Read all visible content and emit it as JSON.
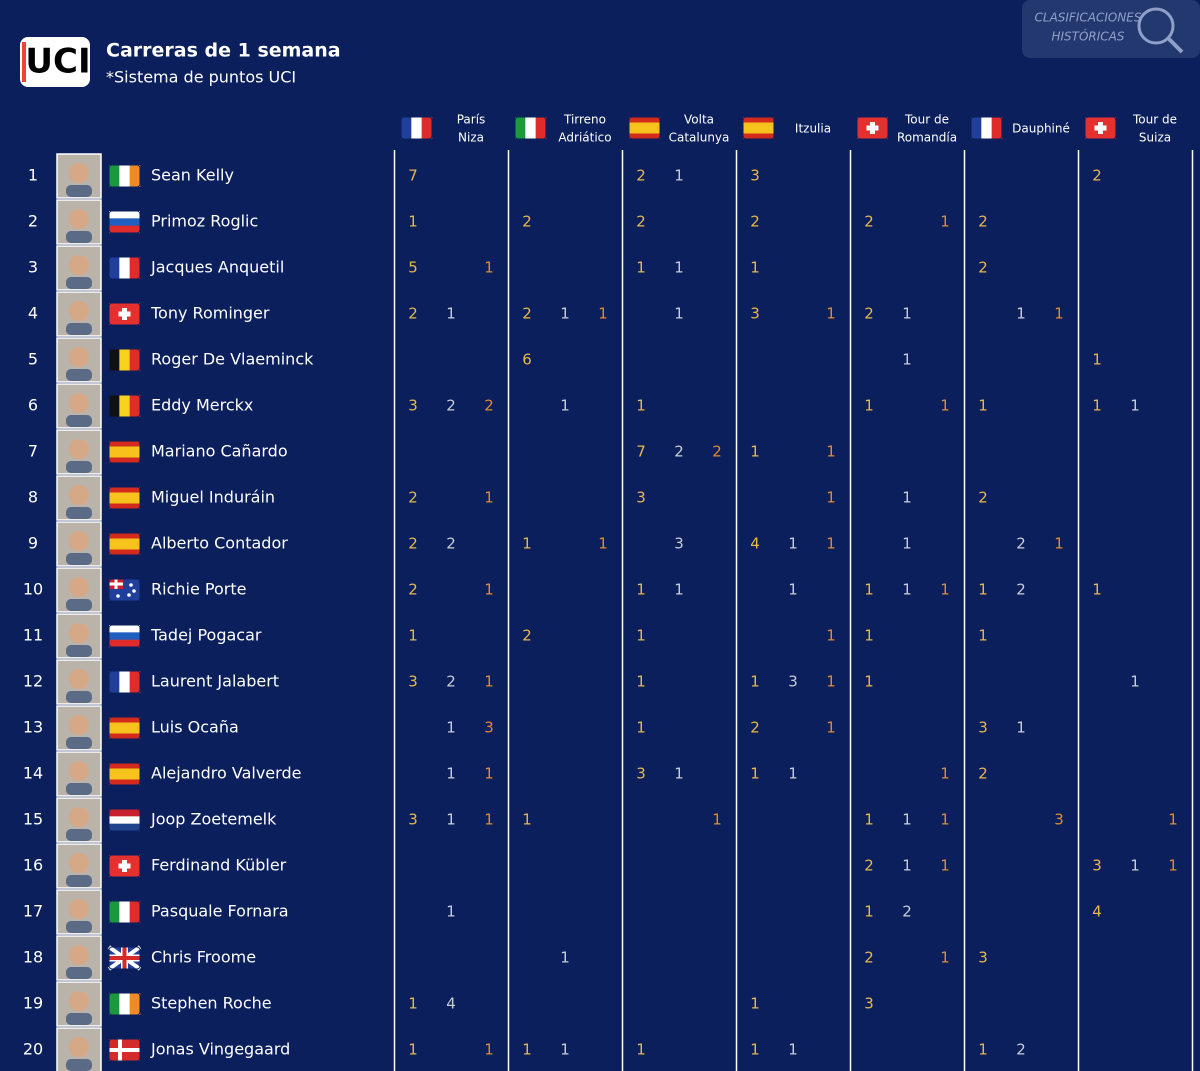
{
  "header": {
    "logo": "UCI",
    "title": "Carreras de 1 semana",
    "subtitle": "*Sistema de puntos UCI",
    "watermark": [
      "CLASIFICACIONES",
      "HISTÓRICAS"
    ]
  },
  "table": {
    "columns": [
      [
        "París",
        "Niza"
      ],
      [
        "Tirreno",
        "Adriático"
      ],
      [
        "Volta",
        "Catalunya"
      ],
      [
        "Itzulia"
      ],
      [
        "Tour de",
        "Romandía"
      ],
      [
        "Dauphiné"
      ],
      [
        "Tour de",
        "Suiza"
      ]
    ],
    "rows": [
      {
        "rank": 1,
        "name": "Sean Kelly",
        "cells": [
          7,
          null,
          null,
          null,
          null,
          null,
          2,
          1,
          null,
          3,
          null,
          null,
          null,
          null,
          null,
          null,
          null,
          null,
          2,
          null,
          null
        ]
      },
      {
        "rank": 2,
        "name": "Primoz Roglic",
        "cells": [
          1,
          null,
          null,
          2,
          null,
          null,
          2,
          null,
          null,
          2,
          null,
          null,
          2,
          null,
          1,
          2,
          null,
          null,
          null,
          null,
          null
        ]
      },
      {
        "rank": 3,
        "name": "Jacques Anquetil",
        "cells": [
          5,
          null,
          1,
          null,
          null,
          null,
          1,
          1,
          null,
          1,
          null,
          null,
          null,
          null,
          null,
          2,
          null,
          null,
          null,
          null,
          null
        ]
      },
      {
        "rank": 4,
        "name": "Tony Rominger",
        "cells": [
          2,
          1,
          null,
          2,
          1,
          1,
          null,
          1,
          null,
          3,
          null,
          1,
          2,
          1,
          null,
          null,
          1,
          1,
          null,
          null,
          null
        ]
      },
      {
        "rank": 5,
        "name": "Roger De Vlaeminck",
        "cells": [
          null,
          null,
          null,
          6,
          null,
          null,
          null,
          null,
          null,
          null,
          null,
          null,
          null,
          1,
          null,
          null,
          null,
          null,
          1,
          null,
          null
        ]
      },
      {
        "rank": 6,
        "name": "Eddy Merckx",
        "cells": [
          3,
          2,
          2,
          null,
          1,
          null,
          1,
          null,
          null,
          null,
          null,
          null,
          1,
          null,
          1,
          1,
          null,
          null,
          1,
          1,
          null
        ]
      },
      {
        "rank": 7,
        "name": "Mariano Cañardo",
        "cells": [
          null,
          null,
          null,
          null,
          null,
          null,
          7,
          2,
          2,
          1,
          null,
          1,
          null,
          null,
          null,
          null,
          null,
          null,
          null,
          null,
          null
        ]
      },
      {
        "rank": 8,
        "name": "Miguel Induráin",
        "cells": [
          2,
          null,
          1,
          null,
          null,
          null,
          3,
          null,
          null,
          null,
          null,
          1,
          null,
          1,
          null,
          2,
          null,
          null,
          null,
          null,
          null
        ]
      },
      {
        "rank": 9,
        "name": "Alberto Contador",
        "cells": [
          2,
          2,
          null,
          1,
          null,
          1,
          null,
          3,
          null,
          4,
          1,
          1,
          null,
          1,
          null,
          null,
          2,
          1,
          null,
          null,
          null
        ]
      },
      {
        "rank": 10,
        "name": "Richie Porte",
        "cells": [
          2,
          null,
          1,
          null,
          null,
          null,
          1,
          1,
          null,
          null,
          1,
          null,
          1,
          1,
          1,
          1,
          2,
          null,
          1,
          null,
          null
        ]
      },
      {
        "rank": 11,
        "name": "Tadej Pogacar",
        "cells": [
          1,
          null,
          null,
          2,
          null,
          null,
          1,
          null,
          null,
          null,
          null,
          1,
          1,
          null,
          null,
          1,
          null,
          null,
          null,
          null,
          null
        ]
      },
      {
        "rank": 12,
        "name": "Laurent Jalabert",
        "cells": [
          3,
          2,
          1,
          null,
          null,
          null,
          1,
          null,
          null,
          1,
          3,
          1,
          1,
          null,
          null,
          null,
          null,
          null,
          null,
          1,
          null
        ]
      },
      {
        "rank": 13,
        "name": "Luis Ocaña",
        "cells": [
          null,
          1,
          3,
          null,
          null,
          null,
          1,
          null,
          null,
          2,
          null,
          1,
          null,
          null,
          null,
          3,
          1,
          null,
          null,
          null,
          null
        ]
      },
      {
        "rank": 14,
        "name": "Alejandro Valverde",
        "cells": [
          null,
          1,
          1,
          null,
          null,
          null,
          3,
          1,
          null,
          1,
          1,
          null,
          null,
          null,
          1,
          2,
          null,
          null,
          null,
          null,
          null
        ]
      },
      {
        "rank": 15,
        "name": "Joop Zoetemelk",
        "cells": [
          3,
          1,
          1,
          1,
          null,
          null,
          null,
          null,
          1,
          null,
          null,
          null,
          1,
          1,
          1,
          null,
          null,
          3,
          null,
          null,
          1
        ]
      },
      {
        "rank": 16,
        "name": "Ferdinand Kübler",
        "cells": [
          null,
          null,
          null,
          null,
          null,
          null,
          null,
          null,
          null,
          null,
          null,
          null,
          2,
          1,
          1,
          null,
          null,
          null,
          3,
          1,
          1
        ]
      },
      {
        "rank": 17,
        "name": "Pasquale Fornara",
        "cells": [
          null,
          1,
          null,
          null,
          null,
          null,
          null,
          null,
          null,
          null,
          null,
          null,
          1,
          2,
          null,
          null,
          null,
          null,
          4,
          null,
          null
        ]
      },
      {
        "rank": 18,
        "name": "Chris Froome",
        "cells": [
          null,
          null,
          null,
          null,
          1,
          null,
          null,
          null,
          null,
          null,
          null,
          null,
          2,
          null,
          1,
          3,
          null,
          null,
          null,
          null,
          null
        ]
      },
      {
        "rank": 19,
        "name": "Stephen Roche",
        "cells": [
          1,
          4,
          null,
          null,
          null,
          null,
          null,
          null,
          null,
          1,
          null,
          null,
          3,
          null,
          null,
          null,
          null,
          null,
          null,
          null,
          null
        ]
      },
      {
        "rank": 20,
        "name": "Jonas Vingegaard",
        "cells": [
          1,
          null,
          1,
          1,
          1,
          null,
          1,
          null,
          null,
          1,
          1,
          null,
          null,
          null,
          null,
          1,
          2,
          null,
          null,
          null,
          null
        ]
      }
    ]
  }
}
